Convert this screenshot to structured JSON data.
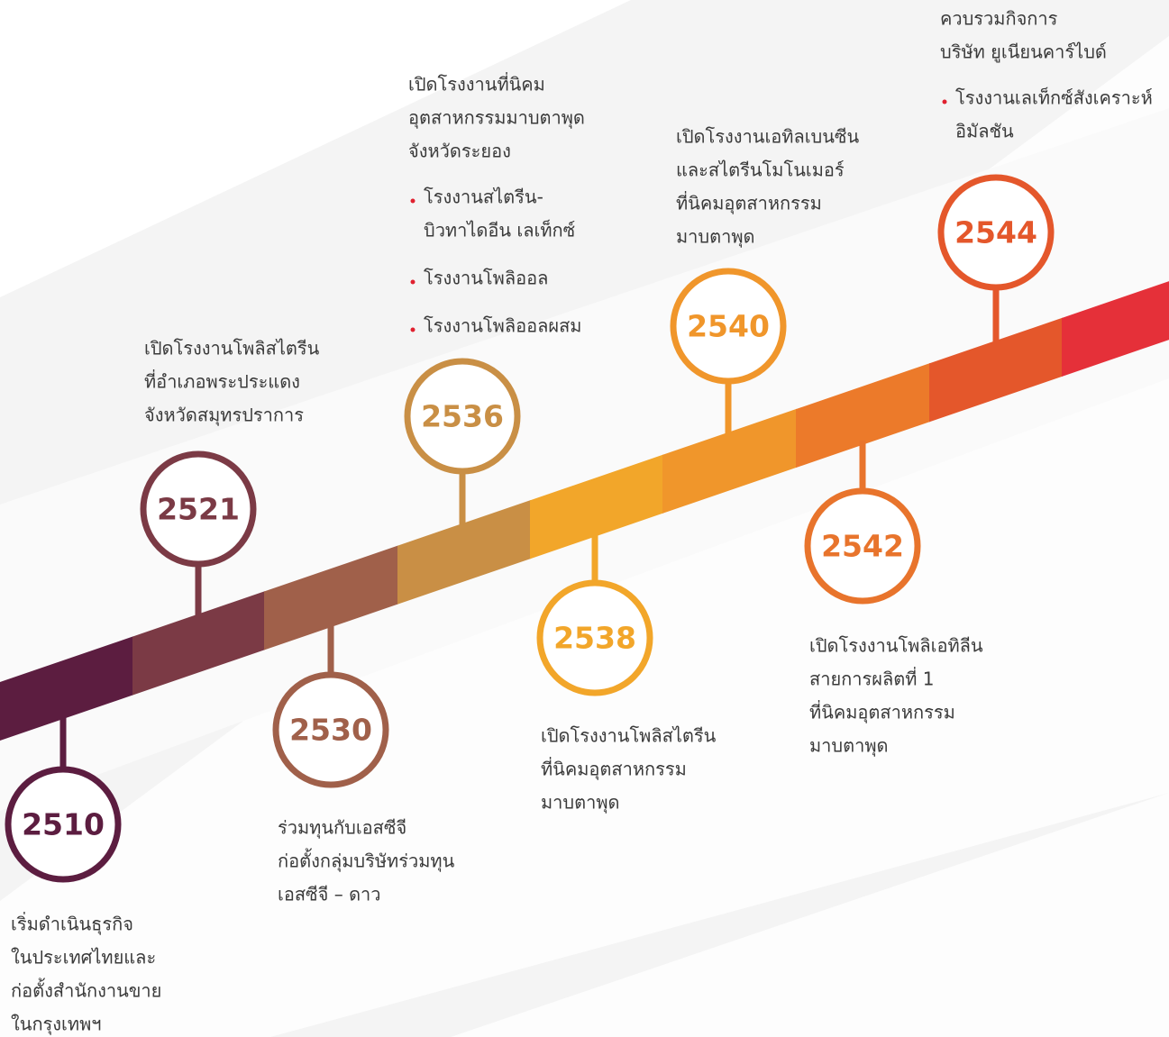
{
  "milestones": [
    {
      "year": "2510",
      "lines": [
        "เริ่มดำเนินธุรกิจ",
        "ในประเทศไทยและ",
        "ก่อตั้งสำนักงานขาย",
        "ในกรุงเทพฯ"
      ],
      "bullets": []
    },
    {
      "year": "2521",
      "lines": [
        "เปิดโรงงานโพลิสไตรีน",
        "ที่อำเภอพระประแดง",
        "จังหวัดสมุทรปราการ"
      ],
      "bullets": []
    },
    {
      "year": "2530",
      "lines": [
        "ร่วมทุนกับเอสซีจี",
        "ก่อตั้งกลุ่มบริษัทร่วมทุน",
        "เอสซีจี – ดาว"
      ],
      "bullets": []
    },
    {
      "year": "2536",
      "lines": [
        "เปิดโรงงานที่นิคม",
        "อุตสาหกรรมมาบตาพุด",
        "จังหวัดระยอง"
      ],
      "bullets": [
        [
          "โรงงานสไตรีน-",
          "บิวทาไดอีน เลเท็กซ์"
        ],
        [
          "โรงงานโพลิออล"
        ],
        [
          "โรงงานโพลิออลผสม"
        ]
      ]
    },
    {
      "year": "2538",
      "lines": [
        "เปิดโรงงานโพลิสไตรีน",
        "ที่นิคมอุตสาหกรรม",
        "มาบตาพุด"
      ],
      "bullets": []
    },
    {
      "year": "2540",
      "lines": [
        "เปิดโรงงานเอทิลเบนซีน",
        "และสไตรีนโมโนเมอร์",
        "ที่นิคมอุตสาหกรรม",
        "มาบตาพุด"
      ],
      "bullets": []
    },
    {
      "year": "2542",
      "lines": [
        "เปิดโรงงานโพลิเอทิลีน",
        "สายการผลิตที่ 1",
        "ที่นิคมอุตสาหกรรม",
        "มาบตาพุด"
      ],
      "bullets": []
    },
    {
      "year": "2544",
      "lines": [
        "ควบรวมกิจการ",
        "บริษัท ยูเนียนคาร์ไบด์"
      ],
      "bullets": [
        [
          "โรงงานเลเท็กซ์สังเคราะห์",
          "อิมัลชัน"
        ]
      ]
    }
  ]
}
